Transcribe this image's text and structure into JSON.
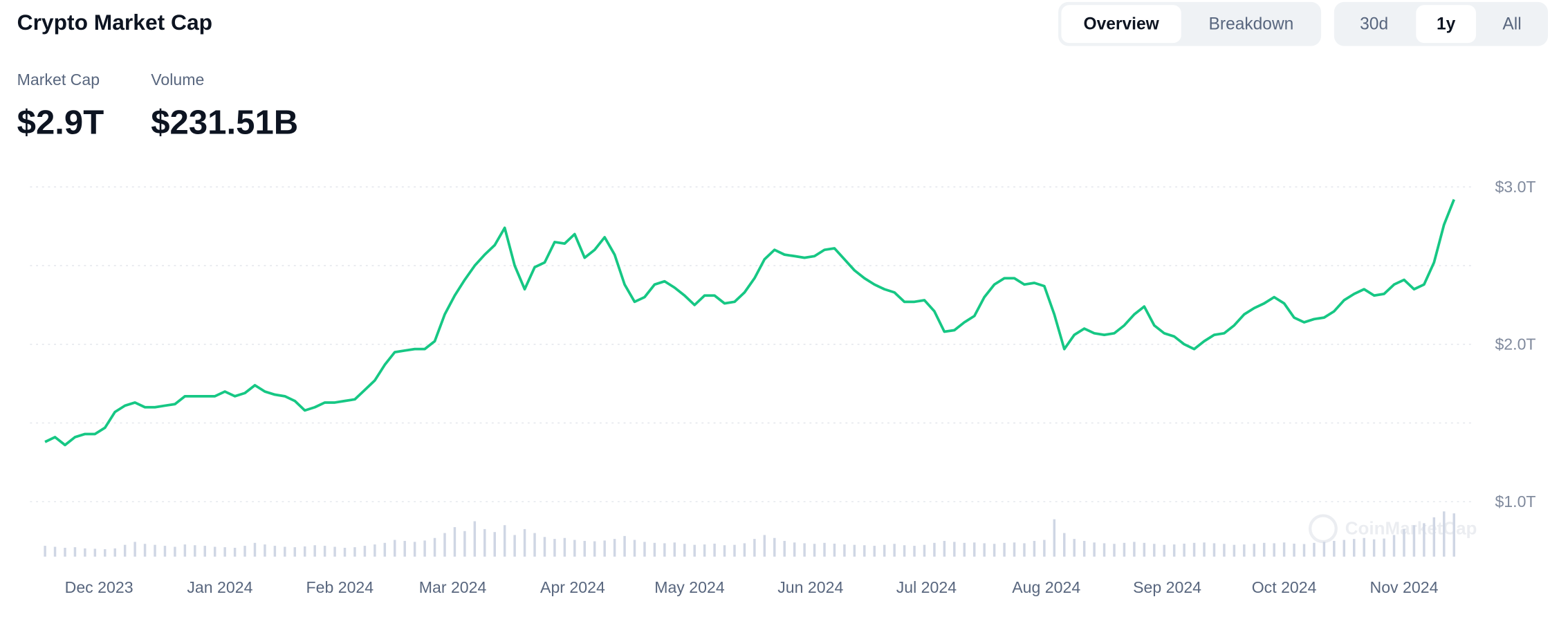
{
  "header": {
    "title": "Crypto Market Cap",
    "tabs": [
      "Overview",
      "Breakdown"
    ],
    "active_tab": 0,
    "ranges": [
      "30d",
      "1y",
      "All"
    ],
    "active_range": 1,
    "stats": [
      {
        "label": "Market Cap",
        "value": "$2.9T"
      },
      {
        "label": "Volume",
        "value": "$231.51B"
      }
    ],
    "watermark": "CoinMarketCap"
  },
  "chart_data": {
    "type": "line",
    "color": "#16c784",
    "values": [
      1.38,
      1.41,
      1.36,
      1.41,
      1.43,
      1.43,
      1.47,
      1.57,
      1.61,
      1.63,
      1.6,
      1.6,
      1.61,
      1.62,
      1.67,
      1.67,
      1.67,
      1.67,
      1.7,
      1.67,
      1.69,
      1.74,
      1.7,
      1.68,
      1.67,
      1.64,
      1.58,
      1.6,
      1.63,
      1.63,
      1.64,
      1.65,
      1.71,
      1.77,
      1.87,
      1.95,
      1.96,
      1.97,
      1.97,
      2.02,
      2.19,
      2.31,
      2.41,
      2.5,
      2.57,
      2.63,
      2.74,
      2.5,
      2.35,
      2.49,
      2.52,
      2.65,
      2.64,
      2.7,
      2.55,
      2.6,
      2.68,
      2.57,
      2.38,
      2.27,
      2.3,
      2.38,
      2.4,
      2.36,
      2.31,
      2.25,
      2.31,
      2.31,
      2.26,
      2.27,
      2.33,
      2.42,
      2.54,
      2.6,
      2.57,
      2.56,
      2.55,
      2.56,
      2.6,
      2.61,
      2.54,
      2.47,
      2.42,
      2.38,
      2.35,
      2.33,
      2.27,
      2.27,
      2.28,
      2.21,
      2.08,
      2.09,
      2.14,
      2.18,
      2.3,
      2.38,
      2.42,
      2.42,
      2.38,
      2.39,
      2.37,
      2.19,
      1.97,
      2.06,
      2.1,
      2.07,
      2.06,
      2.07,
      2.12,
      2.19,
      2.24,
      2.12,
      2.07,
      2.05,
      2.0,
      1.97,
      2.02,
      2.06,
      2.07,
      2.12,
      2.19,
      2.23,
      2.26,
      2.3,
      2.26,
      2.17,
      2.14,
      2.16,
      2.17,
      2.21,
      2.28,
      2.32,
      2.35,
      2.31,
      2.32,
      2.38,
      2.41,
      2.35,
      2.38,
      2.52,
      2.76,
      2.92
    ],
    "volume": {
      "color": "#cfd6e4",
      "axis": "y2",
      "values": [
        55,
        50,
        45,
        48,
        42,
        40,
        38,
        42,
        60,
        75,
        65,
        60,
        55,
        50,
        62,
        58,
        55,
        50,
        48,
        45,
        55,
        70,
        62,
        55,
        50,
        48,
        52,
        58,
        55,
        50,
        45,
        48,
        55,
        62,
        70,
        85,
        80,
        75,
        82,
        95,
        120,
        150,
        130,
        180,
        140,
        125,
        160,
        110,
        140,
        120,
        100,
        90,
        95,
        85,
        80,
        78,
        82,
        90,
        105,
        85,
        75,
        70,
        68,
        72,
        65,
        60,
        62,
        66,
        58,
        60,
        68,
        90,
        110,
        95,
        80,
        72,
        68,
        65,
        70,
        66,
        62,
        60,
        58,
        55,
        60,
        65,
        58,
        55,
        60,
        70,
        80,
        75,
        70,
        72,
        68,
        65,
        70,
        72,
        68,
        80,
        85,
        190,
        120,
        90,
        80,
        72,
        68,
        65,
        70,
        75,
        70,
        65,
        60,
        62,
        66,
        70,
        72,
        68,
        65,
        60,
        62,
        65,
        70,
        68,
        72,
        66,
        64,
        70,
        75,
        80,
        85,
        90,
        95,
        88,
        92,
        110,
        140,
        160,
        170,
        200,
        230,
        220
      ]
    },
    "xlim": [
      0,
      141
    ],
    "xticks": [
      {
        "value": 5.4,
        "label": "Dec 2023"
      },
      {
        "value": 17.5,
        "label": "Jan 2024"
      },
      {
        "value": 29.5,
        "label": "Feb 2024"
      },
      {
        "value": 40.8,
        "label": "Mar 2024"
      },
      {
        "value": 52.8,
        "label": "Apr 2024"
      },
      {
        "value": 64.5,
        "label": "May 2024"
      },
      {
        "value": 76.6,
        "label": "Jun 2024"
      },
      {
        "value": 88.2,
        "label": "Jul 2024"
      },
      {
        "value": 100.2,
        "label": "Aug 2024"
      },
      {
        "value": 112.3,
        "label": "Sep 2024"
      },
      {
        "value": 124,
        "label": "Oct 2024"
      },
      {
        "value": 136,
        "label": "Nov 2024"
      }
    ],
    "ylim": [
      0.6,
      3.1
    ],
    "yticks": [
      {
        "value": 1,
        "label": "$1.0T"
      },
      {
        "value": 2,
        "label": "$2.0T"
      },
      {
        "value": 3,
        "label": "$3.0T"
      }
    ],
    "minor_grid": [
      1.5,
      2.5
    ],
    "y2lim": [
      0,
      2000
    ],
    "grid": true
  }
}
